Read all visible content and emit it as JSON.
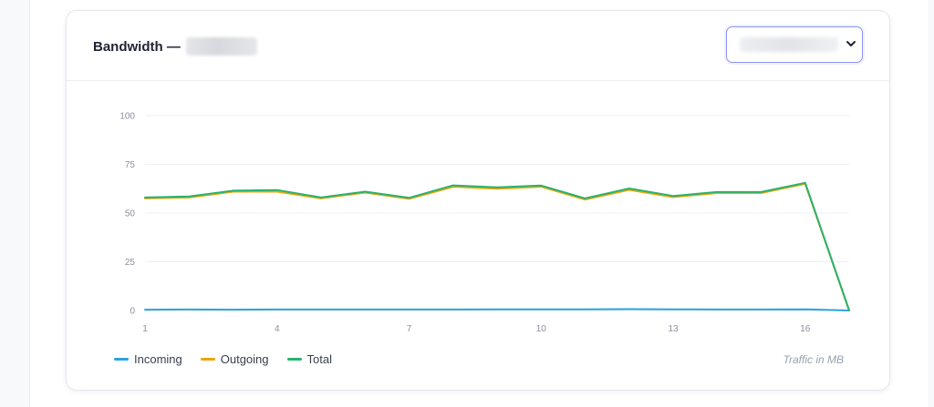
{
  "card": {
    "title": "Bandwidth —"
  },
  "colors": {
    "incoming": "#2aa4dc",
    "outgoing": "#f0a30a",
    "total": "#27b36e",
    "grid": "#eef0f3",
    "select_border": "#8d93f0"
  },
  "chart_data": {
    "type": "line",
    "x": [
      1,
      2,
      3,
      4,
      5,
      6,
      7,
      8,
      9,
      10,
      11,
      12,
      13,
      14,
      15,
      16,
      17
    ],
    "x_ticks": [
      "1",
      "4",
      "7",
      "10",
      "13",
      "16"
    ],
    "y_ticks": [
      "0",
      "25",
      "50",
      "75",
      "100"
    ],
    "ylim": [
      0,
      100
    ],
    "series": [
      {
        "name": "Incoming",
        "color_key": "incoming",
        "values": [
          0.4,
          0.5,
          0.4,
          0.5,
          0.5,
          0.5,
          0.5,
          0.5,
          0.6,
          0.6,
          0.6,
          0.7,
          0.6,
          0.5,
          0.5,
          0.6,
          0.0
        ]
      },
      {
        "name": "Outgoing",
        "color_key": "outgoing",
        "values": [
          57.5,
          58.0,
          61.0,
          61.0,
          57.5,
          60.5,
          57.3,
          63.5,
          62.5,
          63.5,
          56.9,
          61.9,
          58.2,
          60.3,
          60.3,
          65.0,
          0.0
        ]
      },
      {
        "name": "Total",
        "color_key": "total",
        "values": [
          58.0,
          58.5,
          61.5,
          61.8,
          58.0,
          61.0,
          57.8,
          64.2,
          63.2,
          64.1,
          57.5,
          62.6,
          58.8,
          60.8,
          60.8,
          65.5,
          0.0
        ]
      }
    ],
    "annotation": "Traffic in MB",
    "grid": true,
    "legend_position": "bottom-left"
  }
}
